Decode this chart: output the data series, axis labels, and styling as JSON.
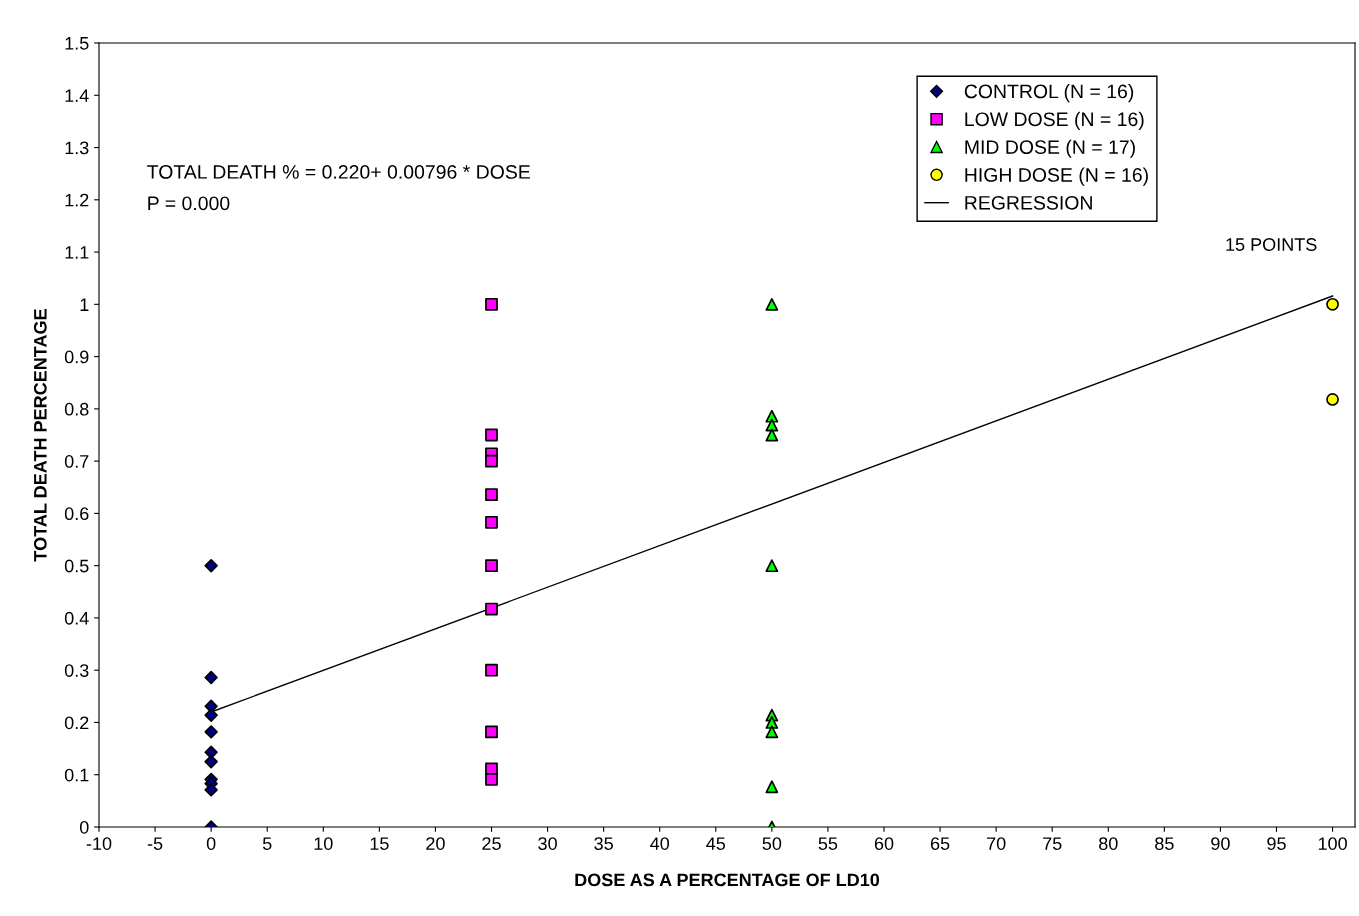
{
  "chart_data": {
    "type": "scatter",
    "xlabel": "DOSE AS A PERCENTAGE OF LD10",
    "ylabel": "TOTAL DEATH PERCENTAGE",
    "xlim": [
      -10,
      102
    ],
    "xticks": [
      -10,
      -5,
      0,
      5,
      10,
      15,
      20,
      25,
      30,
      35,
      40,
      45,
      50,
      55,
      60,
      65,
      70,
      75,
      80,
      85,
      90,
      95,
      100
    ],
    "ylim": [
      0,
      1.5
    ],
    "yticks": [
      0,
      0.1,
      0.2,
      0.3,
      0.4,
      0.5,
      0.6,
      0.7,
      0.8,
      0.9,
      1,
      1.1,
      1.2,
      1.3,
      1.4,
      1.5
    ],
    "grid": false,
    "legend": "top right",
    "series": [
      {
        "name": "CONTROL (N = 16)",
        "color": "#000080",
        "marker": "diamond",
        "x": [
          0,
          0,
          0,
          0,
          0,
          0,
          0,
          0,
          0,
          0,
          0
        ],
        "values": [
          0.5,
          0.286,
          0.231,
          0.214,
          0.182,
          0.143,
          0.125,
          0.091,
          0.083,
          0.071,
          0
        ]
      },
      {
        "name": "LOW DOSE (N = 16)",
        "color": "#ff00ff",
        "marker": "square",
        "x": [
          25,
          25,
          25,
          25,
          25,
          25,
          25,
          25,
          25,
          25,
          25,
          25
        ],
        "values": [
          1.0,
          0.75,
          0.714,
          0.7,
          0.636,
          0.583,
          0.5,
          0.417,
          0.3,
          0.182,
          0.111,
          0.091
        ]
      },
      {
        "name": "MID DOSE (N = 17)",
        "color": "#00ff00",
        "marker": "triangle",
        "x": [
          50,
          50,
          50,
          50,
          50,
          50,
          50,
          50,
          50,
          50
        ],
        "values": [
          1.0,
          0.786,
          0.769,
          0.75,
          0.5,
          0.214,
          0.2,
          0.182,
          0.077,
          0
        ]
      },
      {
        "name": "HIGH DOSE (N = 16)",
        "color": "#ffff00",
        "marker": "circle",
        "x": [
          100,
          100
        ],
        "values": [
          1.0,
          0.818
        ]
      },
      {
        "name": "REGRESSION",
        "type": "line",
        "color": "#000000",
        "marker": "none",
        "line_style": "solid",
        "x": [
          0,
          100
        ],
        "values": [
          0.22,
          1.016
        ]
      }
    ],
    "annotations": [
      "TOTAL DEATH % = 0.220+ 0.00796 * DOSE",
      "P = 0.000",
      "15 POINTS"
    ]
  }
}
